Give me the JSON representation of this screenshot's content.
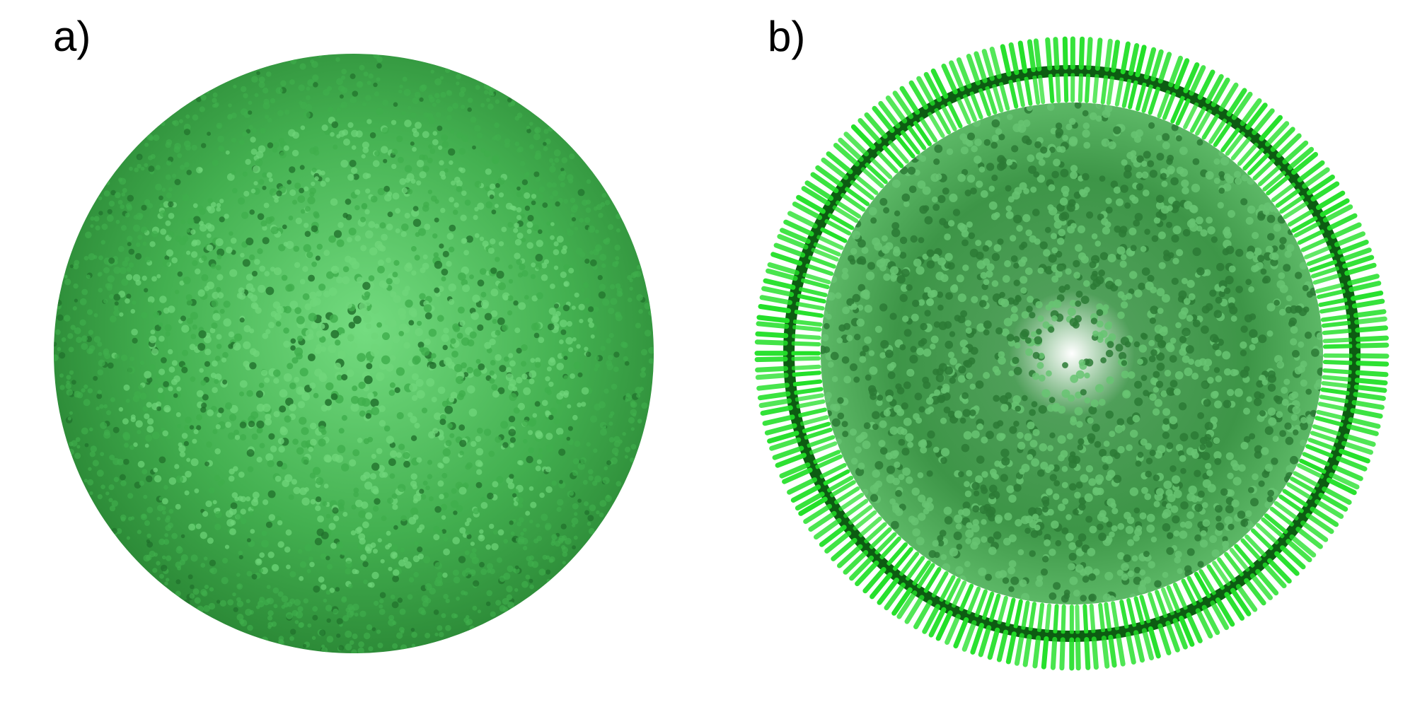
{
  "panels": [
    {
      "label": "a)",
      "view": "sphere-exterior",
      "colors": {
        "bead_light": "#6fd67a",
        "bead_mid": "#3fae4c",
        "bead_dark": "#1f6e2a"
      }
    },
    {
      "label": "b)",
      "view": "sphere-cross-section",
      "colors": {
        "shell_bright": "#22e028",
        "shell_dark": "#0d5c12",
        "interior_light": "#67c472",
        "interior_dark": "#2b7a35"
      }
    }
  ]
}
